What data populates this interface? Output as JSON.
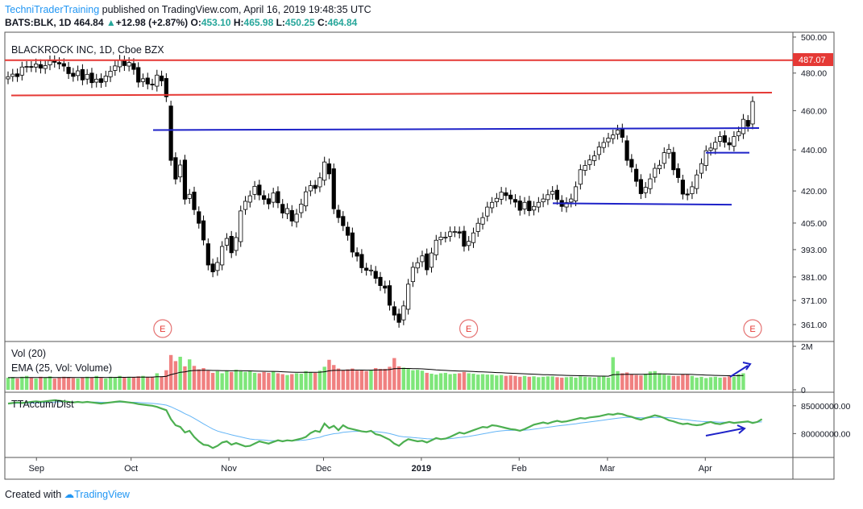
{
  "header": {
    "author": "TechniTraderTraining",
    "published": "published on TradingView.com, April 16, 2019 19:48:35 UTC",
    "symbol": "BATS:BLK, 1D",
    "last": "464.84",
    "change": "+12.98 (+2.87%)",
    "o_label": "O:",
    "o": "453.10",
    "h_label": "H:",
    "h": "465.98",
    "l_label": "L:",
    "l": "450.25",
    "c_label": "C:",
    "c": "464.84"
  },
  "footer": {
    "created": "Created with",
    "brand": "TradingView"
  },
  "colors": {
    "up": "#26a69a",
    "down": "#000000",
    "red_line": "#e53935",
    "blue_line": "#1e22c8",
    "vol_up": "#7ee67a",
    "vol_down": "#f08080",
    "accum": "#4caf50",
    "ema": "#000000"
  },
  "chart_data": [
    {
      "type": "candlestick",
      "title": "BLACKROCK INC, 1D, Cboe BZX",
      "y_ticks": [
        "500.00",
        "480.00",
        "460.00",
        "440.00",
        "420.00",
        "405.00",
        "393.00",
        "381.00",
        "371.00",
        "361.00"
      ],
      "y_tick_values": [
        500,
        480,
        460,
        440,
        420,
        405,
        393,
        381,
        371,
        361
      ],
      "y_scale": "log",
      "x_ticks": [
        "Sep",
        "Oct",
        "Nov",
        "Dec",
        "2019",
        "Feb",
        "Mar",
        "Apr"
      ],
      "price_label": "487.07",
      "earnings_marker": "E",
      "earnings_dates": [
        "2018-10-11",
        "2019-01-16",
        "2019-04-16"
      ],
      "x": [
        "2018-08-23",
        "2019-04-16"
      ],
      "close_series": [
        [
          478.0,
          479.4,
          478.1,
          483.3,
          483.6,
          483.5,
          485.0,
          482.7,
          484.1,
          486.7,
          485.9,
          485.0,
          483.8,
          479.7,
          478.2,
          481.2,
          476.3,
          479.3,
          474.8,
          476.7,
          474.9,
          478.4,
          481.0,
          483.9,
          487.1,
          484.1,
          485.8,
          482.0,
          475.1,
          476.9,
          474.1,
          473.7,
          478.9,
          475.8,
          467.3,
          434.8,
          425.7,
          432.5,
          416.1,
          418.4,
          411.2,
          404.9,
          397.3,
          386.2,
          383.2,
          387.3,
          394.4,
          398.0,
          391.6,
          398.4,
          410.6,
          415.1,
          417.7,
          422.2,
          418.1,
          416.0,
          413.9,
          419.0,
          414.4,
          409.6,
          411.7,
          405.9,
          409.1,
          413.8,
          419.6,
          422.5,
          421.2,
          426.3,
          434.0,
          428.2,
          411.6,
          407.5,
          403.8,
          399.4,
          391.9,
          390.1,
          385.0,
          383.9,
          384.0,
          380.4,
          377.3,
          376.2,
          369.0,
          364.9,
          361.9,
          368.7,
          377.9,
          385.2,
          387.2,
          390.2,
          384.1,
          391.5,
          397.2,
          398.6,
          398.6,
          401.0,
          401.1,
          400.4,
          394.5,
          396.7,
          400.5,
          404.9,
          407.5,
          412.4,
          414.6,
          416.5,
          419.4,
          417.8,
          416.2,
          414.7,
          410.9,
          414.6,
          410.7,
          412.7,
          414.6,
          416.2,
          418.2,
          419.8,
          416.0,
          412.7,
          414.5,
          416.2,
          422.0,
          430.2,
          432.3,
          435.0,
          437.0,
          441.5,
          443.7,
          445.9,
          447.5,
          450.0,
          446.3,
          434.8,
          431.5,
          424.6,
          418.7,
          421.7,
          425.8,
          430.9,
          432.4,
          438.6,
          440.3,
          430.2,
          426.4,
          418.5,
          418.1,
          422.0,
          427.7,
          433.2,
          439.6,
          440.9,
          443.8,
          446.7,
          443.8,
          442.5,
          446.7,
          449.1,
          455.5,
          451.9,
          464.8
        ]
      ]
    },
    {
      "type": "bar",
      "title": "Vol (20)",
      "subtitle": "EMA (25, Vol: Volume)",
      "y_ticks": [
        "2M",
        "0"
      ],
      "ylim": [
        0,
        2000000
      ],
      "values": [
        560000,
        580000,
        520000,
        600000,
        640000,
        560000,
        520000,
        600000,
        560000,
        620000,
        520000,
        560000,
        600000,
        580000,
        540000,
        520000,
        560000,
        600000,
        580000,
        640000,
        560000,
        520000,
        600000,
        580000,
        640000,
        560000,
        600000,
        580000,
        620000,
        640000,
        580000,
        600000,
        760000,
        620000,
        900000,
        1600000,
        1320000,
        1520000,
        1080000,
        1400000,
        1100000,
        940000,
        1000000,
        880000,
        780000,
        860000,
        760000,
        880000,
        820000,
        920000,
        860000,
        820000,
        860000,
        780000,
        760000,
        820000,
        780000,
        840000,
        760000,
        720000,
        680000,
        720000,
        760000,
        740000,
        860000,
        820000,
        780000,
        880000,
        1060000,
        1380000,
        1140000,
        980000,
        900000,
        940000,
        980000,
        880000,
        920000,
        860000,
        920000,
        1000000,
        960000,
        960000,
        1060000,
        1460000,
        1080000,
        1020000,
        960000,
        900000,
        920000,
        880000,
        780000,
        740000,
        700000,
        760000,
        780000,
        720000,
        740000,
        760000,
        820000,
        760000,
        740000,
        700000,
        720000,
        700000,
        700000,
        660000,
        680000,
        640000,
        660000,
        640000,
        600000,
        640000,
        600000,
        620000,
        580000,
        600000,
        620000,
        620000,
        580000,
        560000,
        580000,
        600000,
        560000,
        620000,
        600000,
        580000,
        560000,
        600000,
        620000,
        560000,
        1500000,
        860000,
        760000,
        800000,
        720000,
        680000,
        660000,
        740000,
        840000,
        860000,
        760000,
        700000,
        660000,
        640000,
        640000,
        720000,
        700000,
        640000,
        560000,
        600000,
        540000,
        580000,
        600000,
        560000,
        580000,
        620000,
        600000,
        720000,
        760000
      ]
    },
    {
      "type": "line",
      "title": "TTAccum/Dist",
      "y_ticks": [
        "85000000.00",
        "80000000.00"
      ],
      "ylim": [
        76000000,
        87000000
      ],
      "values": [
        85400000,
        85500000,
        85600000,
        85500000,
        85600000,
        85700000,
        85800000,
        85700000,
        85800000,
        85900000,
        86000000,
        85900000,
        85800000,
        85700000,
        85600000,
        85700000,
        85600000,
        85700000,
        85600000,
        85500000,
        85400000,
        85500000,
        85600000,
        85700000,
        85800000,
        85700000,
        85600000,
        85500000,
        85300000,
        85200000,
        85100000,
        85000000,
        84800000,
        84500000,
        84200000,
        82600000,
        81500000,
        81200000,
        80200000,
        80500000,
        79400000,
        78600000,
        78000000,
        77900000,
        77400000,
        77800000,
        78400000,
        78600000,
        78000000,
        78300000,
        78000000,
        77700000,
        77800000,
        78200000,
        78600000,
        78400000,
        78200000,
        78500000,
        78800000,
        78600000,
        78800000,
        78700000,
        78900000,
        79100000,
        79400000,
        80100000,
        80500000,
        80300000,
        81800000,
        81000000,
        81400000,
        80600000,
        81500000,
        81000000,
        80800000,
        80600000,
        80400000,
        80300000,
        80500000,
        79900000,
        79700000,
        79300000,
        78900000,
        78200000,
        77800000,
        78500000,
        79000000,
        78800000,
        78600000,
        78700000,
        78400000,
        78800000,
        79200000,
        79000000,
        79100000,
        79400000,
        79800000,
        80200000,
        80000000,
        80300000,
        80600000,
        80900000,
        81200000,
        81100000,
        81500000,
        81400000,
        81200000,
        81000000,
        80800000,
        80700000,
        80500000,
        80800000,
        81200000,
        81600000,
        81800000,
        82000000,
        81800000,
        82100000,
        82300000,
        82100000,
        82200000,
        82400000,
        82600000,
        82800000,
        82700000,
        82900000,
        83000000,
        83100000,
        83300000,
        83500000,
        83400000,
        83600000,
        83500000,
        83200000,
        83000000,
        82700000,
        82500000,
        82800000,
        83000000,
        83300000,
        83100000,
        82800000,
        82400000,
        82200000,
        81900000,
        81700000,
        81800000,
        81600000,
        81500000,
        81600000,
        81900000,
        82100000,
        81800000,
        81700000,
        81900000,
        82100000,
        81900000,
        82000000,
        82100000,
        82200000,
        81900000,
        82100000,
        82600000
      ]
    }
  ]
}
